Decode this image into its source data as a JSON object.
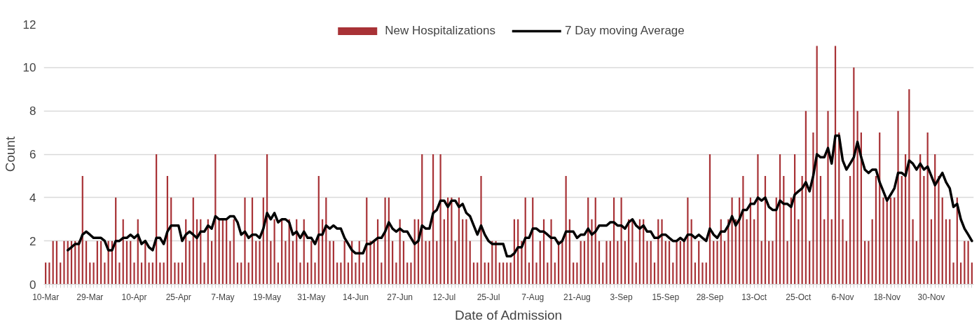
{
  "chart_data": {
    "type": "bar",
    "xlabel": "Date of Admission",
    "ylabel": "Count",
    "categories": [
      "10-Mar",
      null,
      null,
      null,
      null,
      null,
      null,
      null,
      null,
      null,
      null,
      null,
      "29-Mar",
      null,
      null,
      null,
      null,
      null,
      null,
      null,
      null,
      null,
      null,
      null,
      "10-Apr",
      null,
      null,
      null,
      null,
      null,
      null,
      null,
      null,
      null,
      null,
      null,
      "25-Apr",
      null,
      null,
      null,
      null,
      null,
      null,
      null,
      null,
      null,
      null,
      null,
      "7-May",
      null,
      null,
      null,
      null,
      null,
      null,
      null,
      null,
      null,
      null,
      null,
      "19-May",
      null,
      null,
      null,
      null,
      null,
      null,
      null,
      null,
      null,
      null,
      null,
      "31-May",
      null,
      null,
      null,
      null,
      null,
      null,
      null,
      null,
      null,
      null,
      null,
      "14-Jun",
      null,
      null,
      null,
      null,
      null,
      null,
      null,
      null,
      null,
      null,
      null,
      "27-Jun",
      null,
      null,
      null,
      null,
      null,
      null,
      null,
      null,
      null,
      null,
      null,
      "12-Jul",
      null,
      null,
      null,
      null,
      null,
      null,
      null,
      null,
      null,
      null,
      null,
      "25-Jul",
      null,
      null,
      null,
      null,
      null,
      null,
      null,
      null,
      null,
      null,
      null,
      "7-Aug",
      null,
      null,
      null,
      null,
      null,
      null,
      null,
      null,
      null,
      null,
      null,
      "21-Aug",
      null,
      null,
      null,
      null,
      null,
      null,
      null,
      null,
      null,
      null,
      null,
      "3-Sep",
      null,
      null,
      null,
      null,
      null,
      null,
      null,
      null,
      null,
      null,
      null,
      "15-Sep",
      null,
      null,
      null,
      null,
      null,
      null,
      null,
      null,
      null,
      null,
      null,
      "28-Sep",
      null,
      null,
      null,
      null,
      null,
      null,
      null,
      null,
      null,
      null,
      null,
      "13-Oct",
      null,
      null,
      null,
      null,
      null,
      null,
      null,
      null,
      null,
      null,
      null,
      "25-Oct",
      null,
      null,
      null,
      null,
      null,
      null,
      null,
      null,
      null,
      null,
      null,
      "6-Nov",
      null,
      null,
      null,
      null,
      null,
      null,
      null,
      null,
      null,
      null,
      null,
      "18-Nov",
      null,
      null,
      null,
      null,
      null,
      null,
      null,
      null,
      null,
      null,
      null,
      "30-Nov",
      null,
      null,
      null,
      null,
      null,
      null,
      null,
      null,
      null,
      null,
      null
    ],
    "series": [
      {
        "name": "New Hospitalizations",
        "color": "#a83236",
        "values": [
          1,
          1,
          2,
          2,
          1,
          2,
          2,
          2,
          2,
          2,
          5,
          2,
          1,
          1,
          2,
          2,
          1,
          2,
          2,
          4,
          1,
          3,
          2,
          2,
          1,
          3,
          1,
          2,
          1,
          1,
          6,
          1,
          1,
          5,
          4,
          1,
          1,
          1,
          3,
          2,
          4,
          3,
          3,
          1,
          3,
          2,
          6,
          3,
          3,
          3,
          2,
          3,
          1,
          1,
          4,
          1,
          4,
          2,
          2,
          4,
          6,
          2,
          3,
          1,
          3,
          2,
          3,
          2,
          3,
          1,
          3,
          1,
          2,
          1,
          5,
          3,
          4,
          2,
          2,
          1,
          1,
          2,
          1,
          2,
          1,
          2,
          1,
          4,
          2,
          2,
          3,
          1,
          4,
          4,
          2,
          1,
          3,
          2,
          1,
          1,
          3,
          3,
          6,
          2,
          2,
          6,
          2,
          6,
          3,
          4,
          4,
          2,
          4,
          3,
          3,
          2,
          1,
          1,
          5,
          1,
          1,
          2,
          2,
          1,
          1,
          1,
          1,
          3,
          3,
          2,
          4,
          1,
          4,
          1,
          2,
          3,
          1,
          3,
          1,
          2,
          2,
          5,
          3,
          1,
          1,
          2,
          2,
          4,
          3,
          4,
          2,
          1,
          2,
          2,
          4,
          2,
          4,
          2,
          3,
          3,
          1,
          3,
          3,
          2,
          2,
          1,
          3,
          3,
          2,
          2,
          1,
          2,
          2,
          2,
          4,
          3,
          1,
          2,
          1,
          1,
          6,
          2,
          2,
          3,
          2,
          3,
          4,
          3,
          4,
          5,
          3,
          4,
          3,
          6,
          2,
          5,
          2,
          2,
          4,
          6,
          5,
          2,
          4,
          6,
          3,
          5,
          8,
          2,
          7,
          11,
          5,
          3,
          8,
          3,
          11,
          7,
          3,
          2,
          5,
          10,
          8,
          7,
          2,
          2,
          3,
          5,
          7,
          4,
          4,
          4,
          4,
          8,
          5,
          6,
          9,
          3,
          2,
          6,
          5,
          7,
          3,
          6,
          5,
          4,
          3,
          3,
          1,
          4,
          1,
          2,
          2,
          1
        ]
      },
      {
        "name": "7 Day moving Average",
        "type": "line",
        "color": "#000000",
        "values": [
          null,
          null,
          null,
          null,
          null,
          null,
          1.57,
          1.71,
          1.86,
          1.86,
          2.29,
          2.43,
          2.29,
          2.14,
          2.14,
          2.14,
          2.0,
          1.57,
          1.57,
          2.0,
          2.0,
          2.14,
          2.14,
          2.29,
          2.14,
          2.29,
          1.86,
          2.0,
          1.71,
          1.57,
          2.14,
          2.14,
          1.86,
          2.43,
          2.71,
          2.71,
          2.71,
          2.0,
          2.29,
          2.43,
          2.29,
          2.14,
          2.43,
          2.43,
          2.71,
          2.57,
          3.14,
          3.0,
          3.0,
          3.0,
          3.14,
          3.14,
          2.86,
          2.29,
          2.43,
          2.14,
          2.29,
          2.29,
          2.14,
          2.57,
          3.29,
          3.0,
          3.29,
          2.86,
          3.0,
          3.0,
          2.86,
          2.29,
          2.43,
          2.14,
          2.43,
          2.14,
          2.14,
          1.86,
          2.29,
          2.29,
          2.71,
          2.57,
          2.71,
          2.57,
          2.57,
          2.14,
          1.86,
          1.57,
          1.43,
          1.43,
          1.43,
          1.86,
          1.86,
          2.0,
          2.14,
          2.14,
          2.43,
          2.86,
          2.57,
          2.43,
          2.57,
          2.43,
          2.43,
          2.14,
          1.86,
          2.0,
          2.71,
          2.57,
          2.57,
          3.29,
          3.43,
          3.86,
          3.86,
          3.57,
          3.86,
          3.86,
          3.57,
          3.71,
          3.29,
          3.14,
          2.71,
          2.29,
          2.71,
          2.29,
          2.0,
          1.86,
          1.86,
          1.86,
          1.86,
          1.29,
          1.29,
          1.43,
          1.71,
          1.71,
          2.14,
          2.14,
          2.57,
          2.57,
          2.43,
          2.43,
          2.29,
          2.14,
          2.14,
          1.86,
          2.0,
          2.43,
          2.43,
          2.43,
          2.14,
          2.29,
          2.29,
          2.57,
          2.29,
          2.43,
          2.71,
          2.71,
          2.71,
          2.86,
          2.86,
          2.71,
          2.71,
          2.57,
          2.86,
          3.0,
          2.71,
          2.57,
          2.71,
          2.43,
          2.43,
          2.14,
          2.14,
          2.29,
          2.29,
          2.14,
          2.0,
          2.0,
          2.14,
          2.0,
          2.29,
          2.29,
          2.14,
          2.29,
          2.14,
          2.0,
          2.57,
          2.29,
          2.14,
          2.43,
          2.43,
          2.71,
          3.14,
          2.71,
          3.0,
          3.43,
          3.43,
          3.71,
          3.71,
          4.0,
          3.86,
          4.0,
          3.57,
          3.43,
          3.43,
          3.86,
          3.71,
          3.71,
          3.57,
          4.14,
          4.29,
          4.43,
          4.71,
          4.29,
          5.0,
          6.0,
          5.86,
          5.86,
          6.29,
          5.57,
          6.86,
          6.86,
          5.71,
          5.29,
          5.57,
          5.86,
          6.57,
          5.86,
          5.29,
          5.14,
          5.29,
          5.29,
          4.71,
          4.29,
          3.86,
          4.14,
          4.43,
          5.14,
          5.14,
          5.0,
          5.71,
          5.57,
          5.29,
          5.57,
          5.29,
          5.43,
          5.0,
          4.57,
          4.86,
          5.14,
          4.71,
          4.43,
          3.57,
          3.71,
          3.0,
          2.57,
          2.29,
          2.0
        ]
      }
    ],
    "ylim": [
      0,
      12
    ],
    "yticks": [
      0,
      2,
      4,
      6,
      8,
      10,
      12
    ],
    "grid": "y",
    "legend": "top"
  }
}
